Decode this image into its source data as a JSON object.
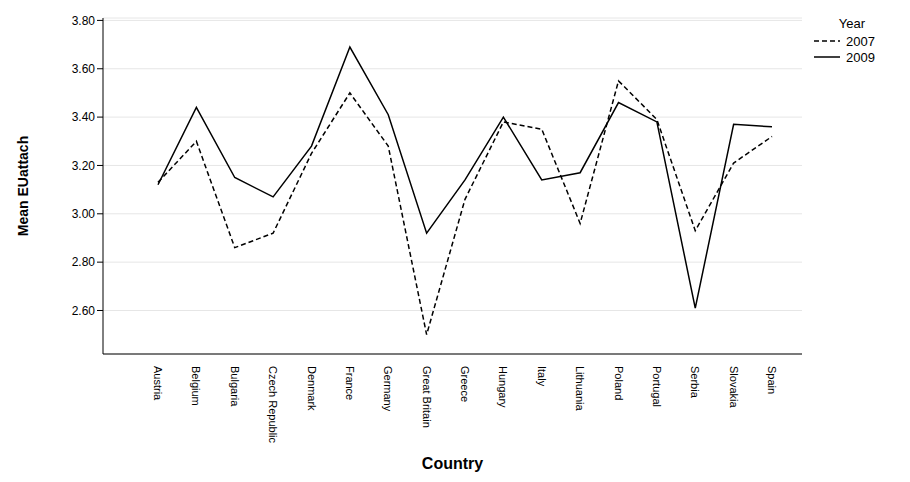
{
  "chart_data": {
    "type": "line",
    "x_label": "Country",
    "y_label": "Mean EUattach",
    "legend_title": "Year",
    "legend": "top right",
    "grid": true,
    "categories": [
      "Austria",
      "Belgium",
      "Bulgaria",
      "Czech Republic",
      "Denmark",
      "France",
      "Germany",
      "Great Britain",
      "Greece",
      "Hungary",
      "Italy",
      "Lithuania",
      "Poland",
      "Portugal",
      "Serbia",
      "Slovakia",
      "Spain"
    ],
    "series": [
      {
        "name": "2007",
        "color": "#000000",
        "line_style": "dashed",
        "values": [
          3.13,
          3.3,
          2.86,
          2.92,
          3.25,
          3.5,
          3.28,
          2.5,
          3.06,
          3.38,
          3.35,
          2.96,
          3.55,
          3.39,
          2.93,
          3.21,
          3.32
        ]
      },
      {
        "name": "2009",
        "color": "#000000",
        "line_style": "solid",
        "values": [
          3.12,
          3.44,
          3.15,
          3.07,
          3.28,
          3.69,
          3.41,
          2.92,
          3.14,
          3.4,
          3.14,
          3.17,
          3.46,
          3.38,
          2.61,
          3.37,
          3.36
        ]
      }
    ],
    "ylim": [
      2.42,
      3.81
    ],
    "yticks": [
      {
        "value": 2.6,
        "label": "2.60"
      },
      {
        "value": 2.8,
        "label": "2.80"
      },
      {
        "value": 3.0,
        "label": "3.00"
      },
      {
        "value": 3.2,
        "label": "3.20"
      },
      {
        "value": 3.4,
        "label": "3.40"
      },
      {
        "value": 3.6,
        "label": "3.60"
      },
      {
        "value": 3.8,
        "label": "3.80"
      }
    ]
  }
}
